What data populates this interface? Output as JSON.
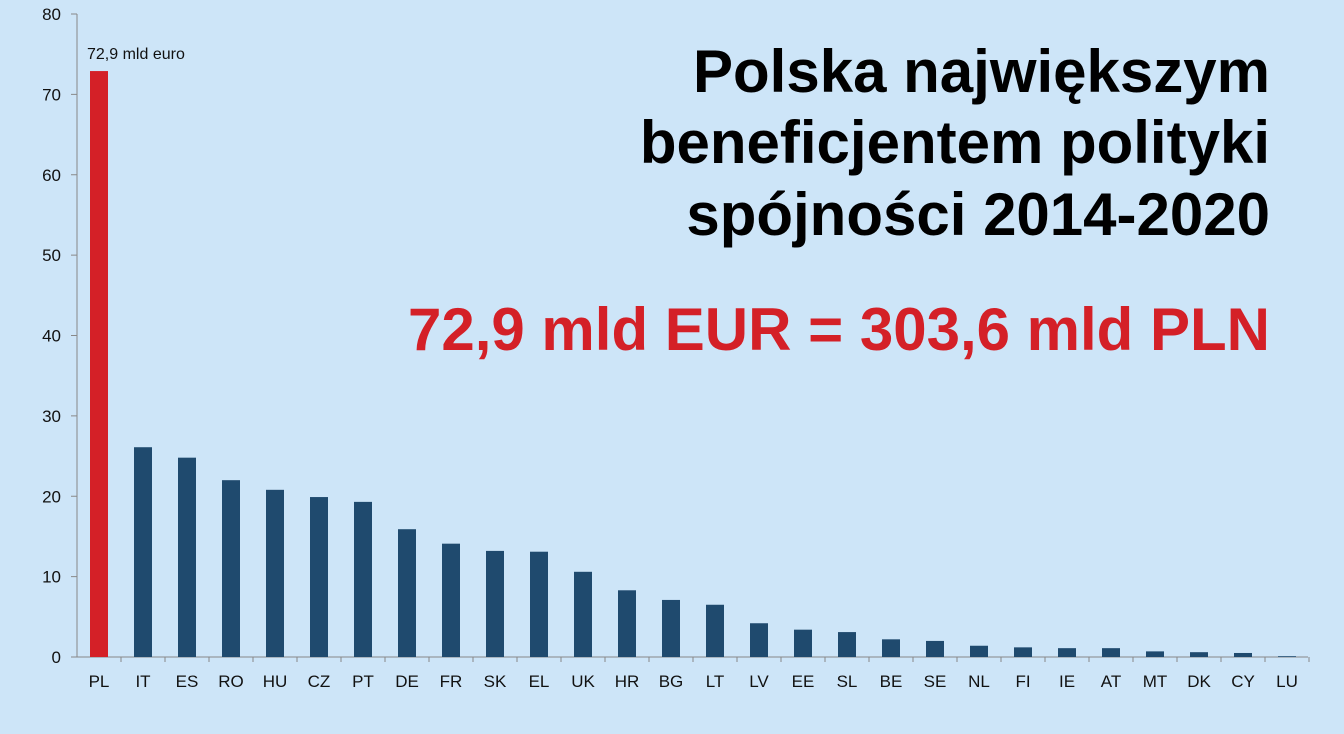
{
  "chart_data": {
    "type": "bar",
    "title": [
      "Polska największym",
      "beneficjentem polityki",
      "spójności 2014-2020"
    ],
    "subtitle": "72,9 mld EUR = 303,6 mld PLN",
    "categories": [
      "PL",
      "IT",
      "ES",
      "RO",
      "HU",
      "CZ",
      "PT",
      "DE",
      "FR",
      "SK",
      "EL",
      "UK",
      "HR",
      "BG",
      "LT",
      "LV",
      "EE",
      "SL",
      "BE",
      "SE",
      "NL",
      "FI",
      "IE",
      "AT",
      "MT",
      "DK",
      "CY",
      "LU"
    ],
    "values": [
      72.9,
      26.1,
      24.8,
      22.0,
      20.8,
      19.9,
      19.3,
      15.9,
      14.1,
      13.2,
      13.1,
      10.6,
      8.3,
      7.1,
      6.5,
      4.2,
      3.4,
      3.1,
      2.2,
      2.0,
      1.4,
      1.2,
      1.1,
      1.1,
      0.7,
      0.6,
      0.5,
      0.1
    ],
    "value_labels": [
      "72,9 mld euro",
      null,
      null,
      null,
      null,
      null,
      null,
      null,
      null,
      null,
      null,
      null,
      null,
      null,
      null,
      null,
      null,
      null,
      null,
      null,
      null,
      null,
      null,
      null,
      null,
      null,
      null,
      null
    ],
    "colors": [
      "#d42027",
      "#1f4a6e",
      "#1f4a6e",
      "#1f4a6e",
      "#1f4a6e",
      "#1f4a6e",
      "#1f4a6e",
      "#1f4a6e",
      "#1f4a6e",
      "#1f4a6e",
      "#1f4a6e",
      "#1f4a6e",
      "#1f4a6e",
      "#1f4a6e",
      "#1f4a6e",
      "#1f4a6e",
      "#1f4a6e",
      "#1f4a6e",
      "#1f4a6e",
      "#1f4a6e",
      "#1f4a6e",
      "#1f4a6e",
      "#1f4a6e",
      "#1f4a6e",
      "#1f4a6e",
      "#1f4a6e",
      "#1f4a6e",
      "#1f4a6e"
    ],
    "ylim": [
      0,
      80
    ],
    "yticks": [
      0,
      10,
      20,
      30,
      40,
      50,
      60,
      70,
      80
    ],
    "grid": false
  }
}
